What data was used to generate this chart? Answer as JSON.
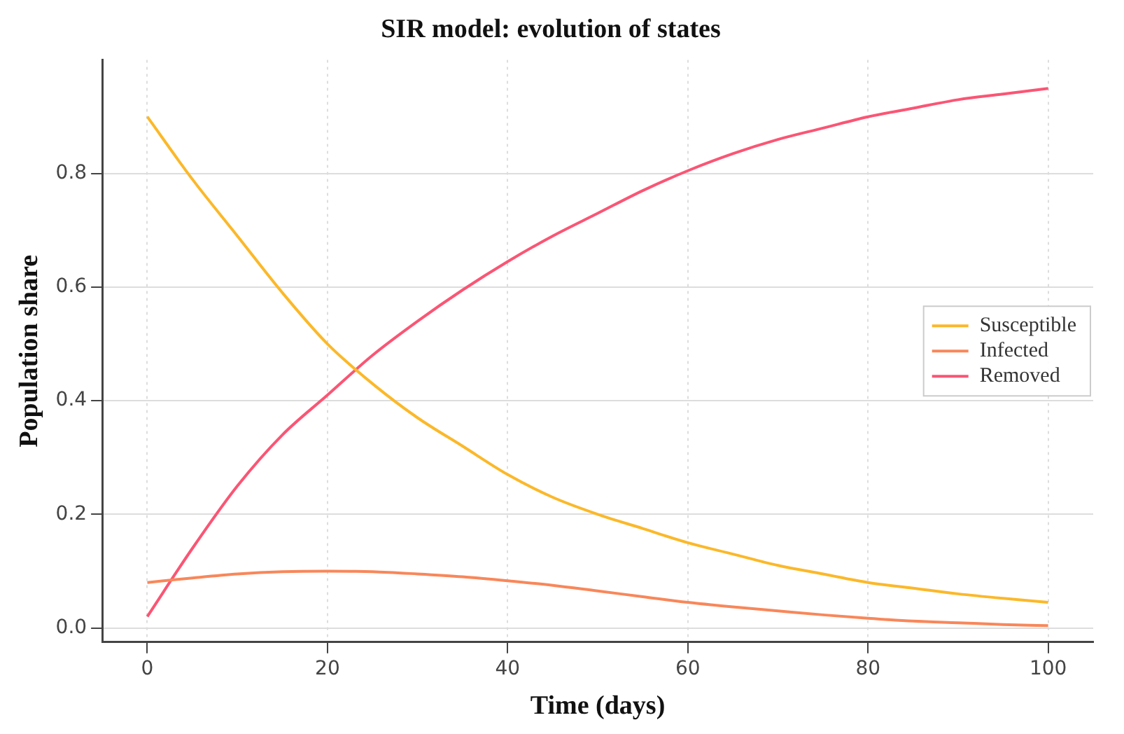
{
  "chart_data": {
    "type": "line",
    "title": "SIR model: evolution of states",
    "xlabel": "Time (days)",
    "ylabel": "Population share",
    "x": [
      0,
      5,
      10,
      15,
      20,
      25,
      30,
      35,
      40,
      45,
      50,
      55,
      60,
      65,
      70,
      75,
      80,
      85,
      90,
      95,
      100
    ],
    "series": [
      {
        "name": "Susceptible",
        "color": "#fbb829",
        "values": [
          0.9,
          0.79,
          0.69,
          0.59,
          0.5,
          0.43,
          0.37,
          0.32,
          0.27,
          0.23,
          0.2,
          0.175,
          0.15,
          0.13,
          0.11,
          0.095,
          0.08,
          0.07,
          0.06,
          0.052,
          0.045
        ]
      },
      {
        "name": "Infected",
        "color": "#f8875a",
        "values": [
          0.08,
          0.088,
          0.095,
          0.099,
          0.1,
          0.099,
          0.095,
          0.09,
          0.083,
          0.075,
          0.065,
          0.055,
          0.045,
          0.037,
          0.03,
          0.023,
          0.017,
          0.012,
          0.009,
          0.006,
          0.004
        ]
      },
      {
        "name": "Removed",
        "color": "#fb5574",
        "values": [
          0.02,
          0.14,
          0.25,
          0.34,
          0.41,
          0.48,
          0.54,
          0.595,
          0.645,
          0.69,
          0.73,
          0.77,
          0.805,
          0.835,
          0.86,
          0.88,
          0.9,
          0.915,
          0.93,
          0.94,
          0.95
        ]
      }
    ],
    "xlim": [
      -5,
      105
    ],
    "xticks": [
      0,
      20,
      40,
      60,
      80,
      100
    ],
    "ylim": [
      -0.025,
      1.0
    ],
    "yticks": [
      {
        "value": 0,
        "label": "0.0"
      },
      {
        "value": 0.2,
        "label": "0.2"
      },
      {
        "value": 0.4,
        "label": "0.4"
      },
      {
        "value": 0.6,
        "label": "0.6"
      },
      {
        "value": 0.8,
        "label": "0.8"
      }
    ],
    "grid": true,
    "legend": "right",
    "marker": "none",
    "line_style": "solid"
  }
}
